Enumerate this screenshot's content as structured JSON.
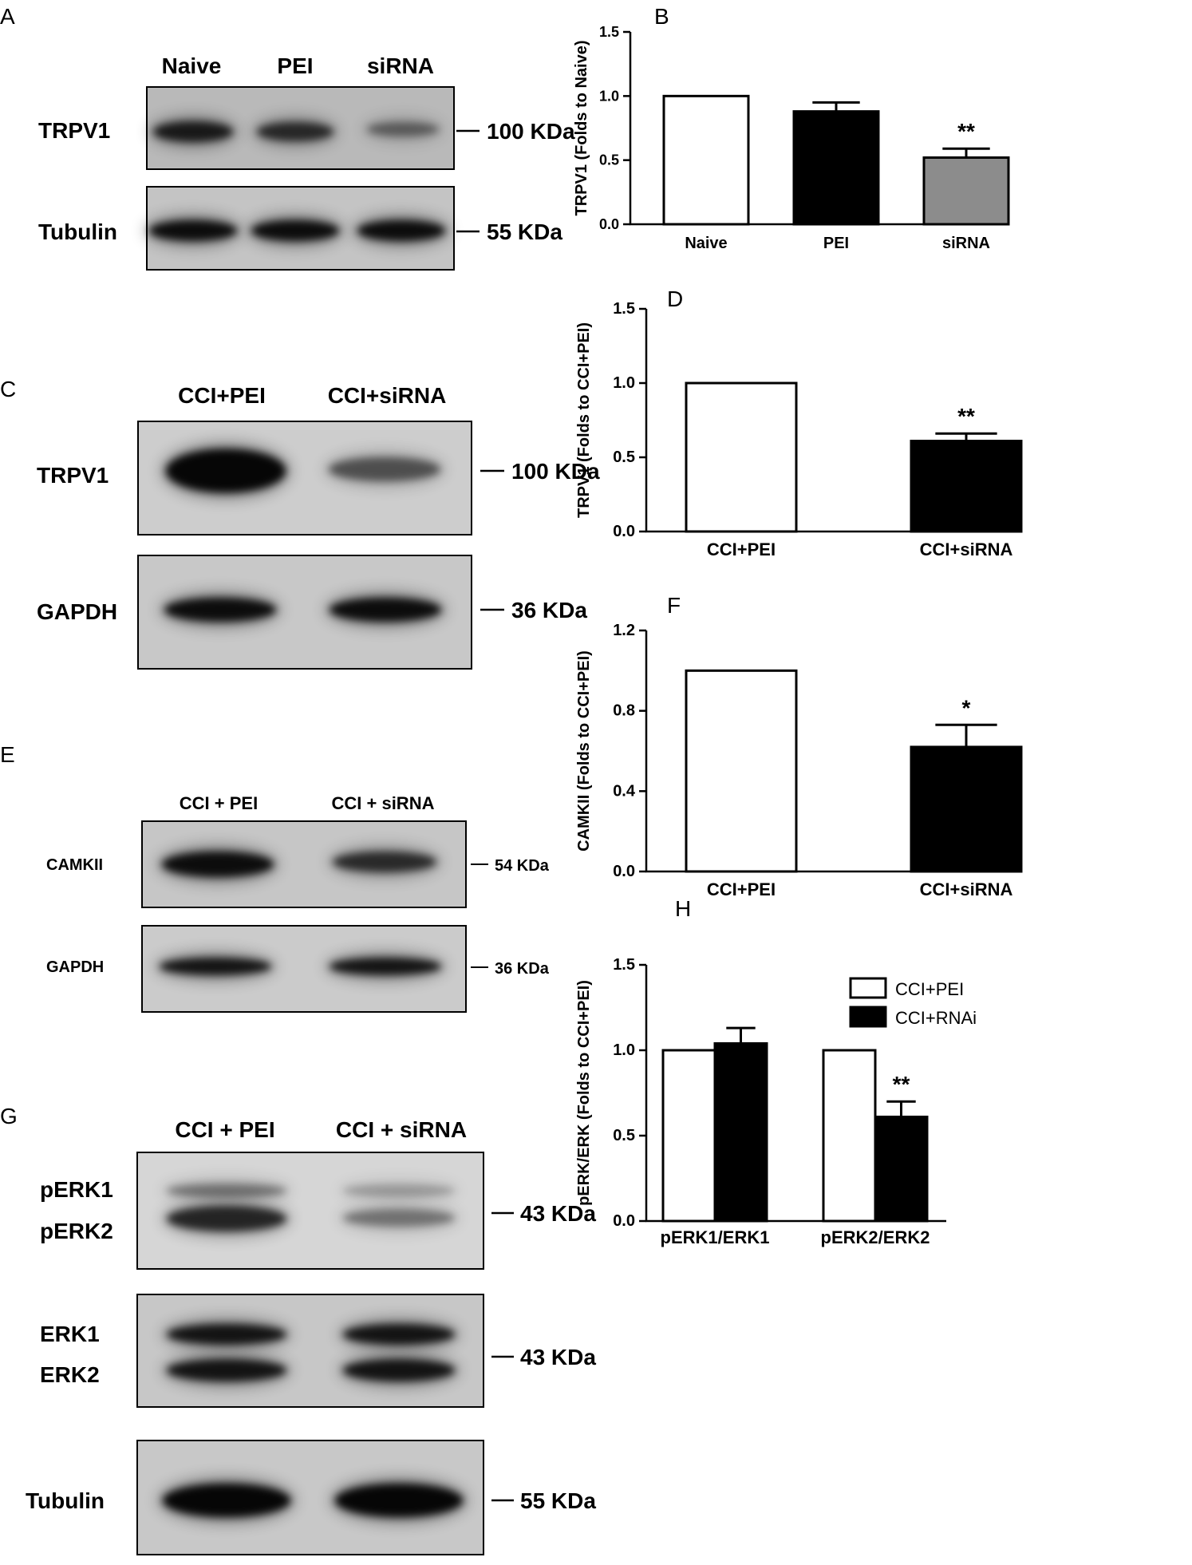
{
  "panels": {
    "A": {
      "letter": "A",
      "lanes": [
        "Naive",
        "PEI",
        "siRNA"
      ],
      "blots": [
        {
          "label": "TRPV1",
          "kda": "100 KDa",
          "intensity": [
            0.85,
            0.75,
            0.45
          ]
        },
        {
          "label": "Tubulin",
          "kda": "55 KDa",
          "intensity": [
            0.95,
            0.95,
            0.95
          ]
        }
      ]
    },
    "C": {
      "letter": "C",
      "lanes": [
        "CCI+PEI",
        "CCI+siRNA"
      ],
      "blots": [
        {
          "label": "TRPV1",
          "kda": "100 KDa",
          "intensity": [
            1.0,
            0.55
          ]
        },
        {
          "label": "GAPDH",
          "kda": "36 KDa",
          "intensity": [
            0.95,
            0.95
          ]
        }
      ]
    },
    "E": {
      "letter": "E",
      "lanes": [
        "CCI + PEI",
        "CCI + siRNA"
      ],
      "blots": [
        {
          "label": "CAMKII",
          "kda": "54 KDa",
          "intensity": [
            0.95,
            0.75
          ]
        },
        {
          "label": "GAPDH",
          "kda": "36 KDa",
          "intensity": [
            0.9,
            0.9
          ]
        }
      ]
    },
    "G": {
      "letter": "G",
      "lanes": [
        "CCI + PEI",
        "CCI + siRNA"
      ],
      "blots": [
        {
          "labels": [
            "pERK1",
            "pERK2"
          ],
          "kda": "43 KDa",
          "intensity": [
            0.8,
            0.4
          ]
        },
        {
          "labels": [
            "ERK1",
            "ERK2"
          ],
          "kda": "43 KDa",
          "intensity": [
            0.9,
            0.9
          ]
        },
        {
          "label": "Tubulin",
          "kda": "55 KDa",
          "intensity": [
            1.0,
            1.0
          ]
        }
      ]
    }
  },
  "chart_data": [
    {
      "id": "B",
      "letter": "B",
      "type": "bar",
      "categories": [
        "Naive",
        "PEI",
        "siRNA"
      ],
      "values": [
        1.0,
        0.88,
        0.52
      ],
      "errors": [
        0,
        0.07,
        0.07
      ],
      "fills": [
        "#ffffff",
        "#000000",
        "#8c8c8c"
      ],
      "significance": [
        "",
        "",
        "**"
      ],
      "ylabel": "TRPV1 (Folds to Naive)",
      "ylim": [
        0,
        1.5
      ],
      "yticks": [
        0.0,
        0.5,
        1.0,
        1.5
      ],
      "ytick_labels": [
        "0.0",
        "0.5",
        "1.0",
        "1.5"
      ]
    },
    {
      "id": "D",
      "letter": "D",
      "type": "bar",
      "categories": [
        "CCI+PEI",
        "CCI+siRNA"
      ],
      "values": [
        1.0,
        0.61
      ],
      "errors": [
        0,
        0.05
      ],
      "fills": [
        "#ffffff",
        "#000000"
      ],
      "significance": [
        "",
        "**"
      ],
      "ylabel": "TRPV1 (Folds to CCI+PEI)",
      "ylim": [
        0,
        1.5
      ],
      "yticks": [
        0.0,
        0.5,
        1.0,
        1.5
      ],
      "ytick_labels": [
        "0.0",
        "0.5",
        "1.0",
        "1.5"
      ]
    },
    {
      "id": "F",
      "letter": "F",
      "type": "bar",
      "categories": [
        "CCI+PEI",
        "CCI+siRNA"
      ],
      "values": [
        1.0,
        0.62
      ],
      "errors": [
        0,
        0.11
      ],
      "fills": [
        "#ffffff",
        "#000000"
      ],
      "significance": [
        "",
        "*"
      ],
      "ylabel": "CAMKII (Folds to CCI+PEI)",
      "ylim": [
        0,
        1.2
      ],
      "yticks": [
        0.0,
        0.4,
        0.8,
        1.2
      ],
      "ytick_labels": [
        "0.0",
        "0.4",
        "0.8",
        "1.2"
      ]
    },
    {
      "id": "H",
      "letter": "H",
      "type": "bar",
      "categories": [
        "pERK1/ERK1",
        "pERK2/ERK2"
      ],
      "series": [
        {
          "name": "CCI+PEI",
          "values": [
            1.0,
            1.0
          ],
          "errors": [
            0,
            0
          ],
          "fill": "#ffffff"
        },
        {
          "name": "CCI+RNAi",
          "values": [
            1.04,
            0.61
          ],
          "errors": [
            0.09,
            0.09
          ],
          "fill": "#000000"
        }
      ],
      "significance": [
        [
          "",
          ""
        ],
        [
          "",
          "**"
        ]
      ],
      "ylabel": "pERK/ERK (Folds to CCI+PEI)",
      "ylim": [
        0,
        1.5
      ],
      "yticks": [
        0.0,
        0.5,
        1.0,
        1.5
      ],
      "ytick_labels": [
        "0.0",
        "0.5",
        "1.0",
        "1.5"
      ],
      "legend_position": "top-right"
    }
  ]
}
